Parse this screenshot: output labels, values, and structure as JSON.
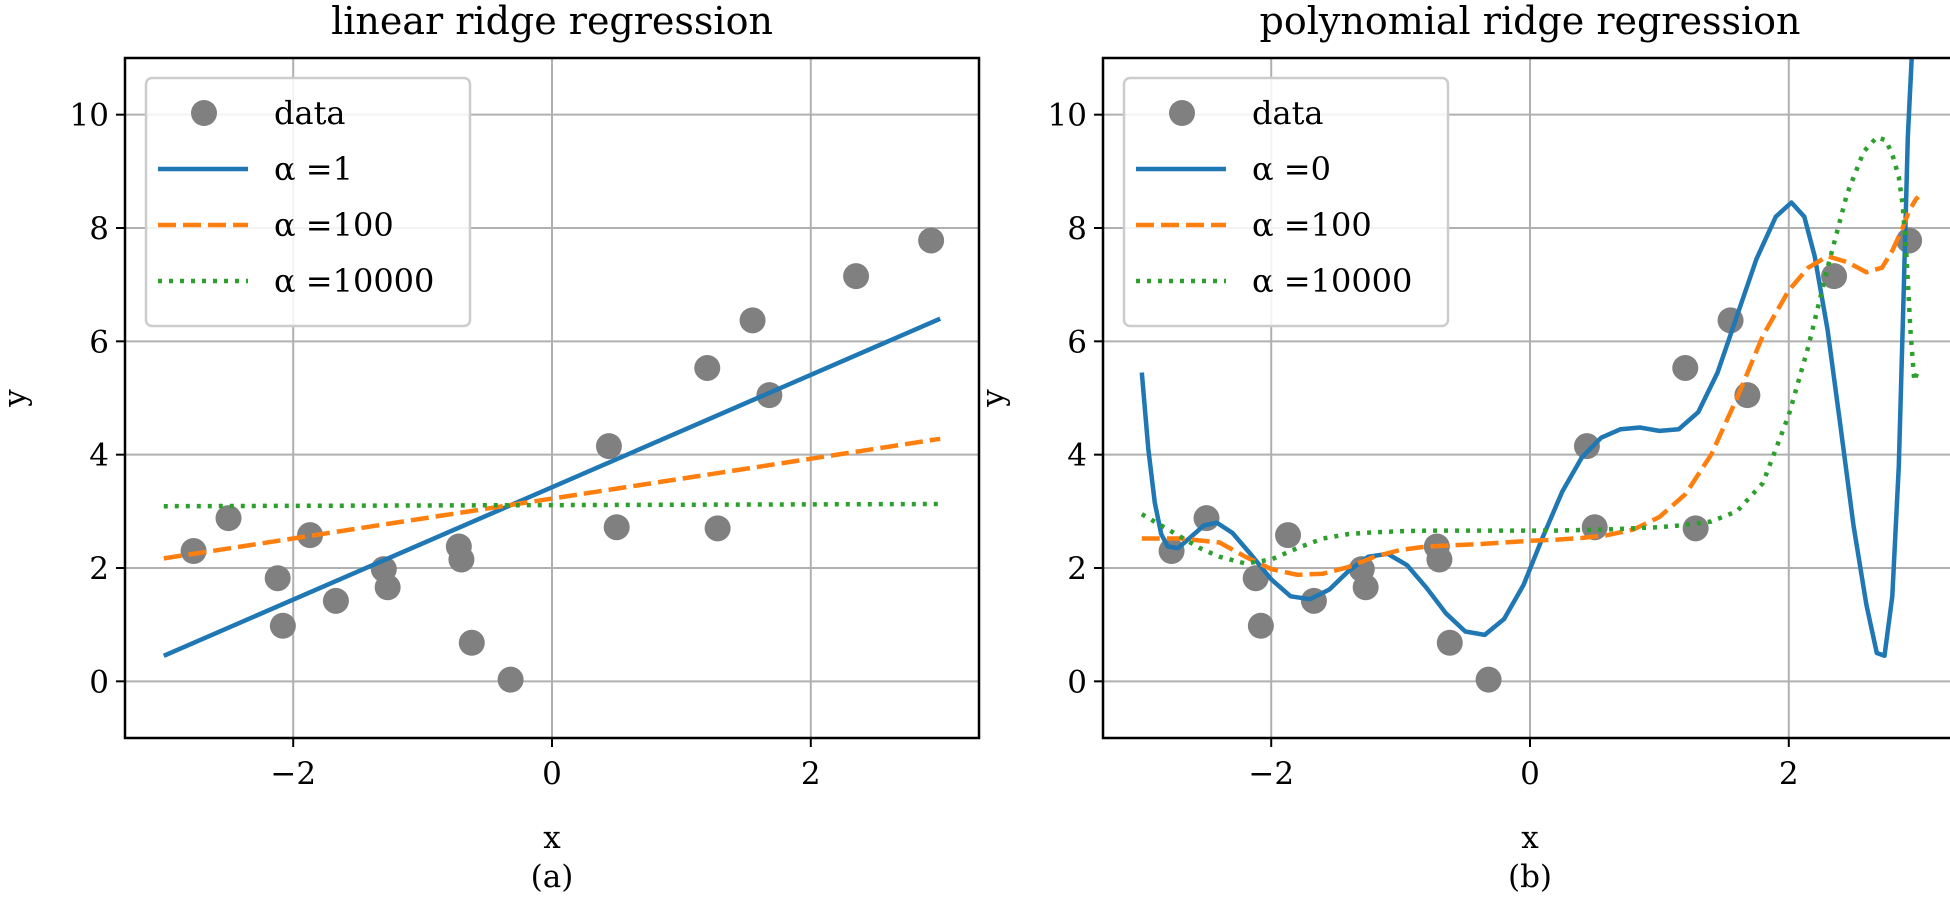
{
  "chart_data": [
    {
      "type": "line",
      "panel_label": "(a)",
      "title": "linear ridge regression",
      "xlabel": "x",
      "ylabel": "y",
      "xlim": [
        -3.3,
        3.3
      ],
      "ylim": [
        -1,
        11
      ],
      "xticks": [
        -2,
        0,
        2
      ],
      "yticks": [
        0,
        2,
        4,
        6,
        8,
        10
      ],
      "xtick_labels": [
        "−2",
        "0",
        "2"
      ],
      "ytick_labels": [
        "0",
        "2",
        "4",
        "6",
        "8",
        "10"
      ],
      "grid": true,
      "legend": {
        "loc": "upper-left",
        "entries": [
          "data",
          "α =1",
          "α =100",
          "α =10000"
        ]
      },
      "scatter": {
        "name": "data",
        "color": "#808080",
        "x": [
          -2.77,
          -2.5,
          -2.12,
          -2.08,
          -1.87,
          -1.67,
          -1.3,
          -1.27,
          -0.72,
          -0.7,
          -0.62,
          -0.32,
          0.44,
          0.5,
          1.2,
          1.28,
          1.55,
          1.68,
          2.35,
          2.93
        ],
        "y": [
          2.3,
          2.88,
          1.82,
          0.98,
          2.58,
          1.42,
          1.98,
          1.66,
          2.38,
          2.15,
          0.68,
          0.03,
          4.15,
          2.72,
          5.53,
          2.7,
          6.37,
          5.05,
          7.15,
          7.78
        ]
      },
      "series": [
        {
          "name": "α =1",
          "color": "#1f77b4",
          "style": "solid",
          "x": [
            -3,
            3
          ],
          "y": [
            0.45,
            6.4
          ]
        },
        {
          "name": "α =100",
          "color": "#ff7f0e",
          "style": "dashed",
          "x": [
            -3,
            3
          ],
          "y": [
            2.17,
            4.28
          ]
        },
        {
          "name": "α =10000",
          "color": "#2ca02c",
          "style": "dotted",
          "x": [
            -3,
            3
          ],
          "y": [
            3.09,
            3.13
          ]
        }
      ]
    },
    {
      "type": "line",
      "panel_label": "(b)",
      "title": "polynomial ridge regression",
      "xlabel": "x",
      "ylabel": "y",
      "xlim": [
        -3.3,
        3.3
      ],
      "ylim": [
        -1,
        11
      ],
      "xticks": [
        -2,
        0,
        2
      ],
      "yticks": [
        0,
        2,
        4,
        6,
        8,
        10
      ],
      "xtick_labels": [
        "−2",
        "0",
        "2"
      ],
      "ytick_labels": [
        "0",
        "2",
        "4",
        "6",
        "8",
        "10"
      ],
      "grid": true,
      "legend": {
        "loc": "upper-left",
        "entries": [
          "data",
          "α =0",
          "α =100",
          "α =10000"
        ]
      },
      "scatter": {
        "name": "data",
        "color": "#808080",
        "x": [
          -2.77,
          -2.5,
          -2.12,
          -2.08,
          -1.87,
          -1.67,
          -1.3,
          -1.27,
          -0.72,
          -0.7,
          -0.62,
          -0.32,
          0.44,
          0.5,
          1.2,
          1.28,
          1.55,
          1.68,
          2.35,
          2.93
        ],
        "y": [
          2.3,
          2.88,
          1.82,
          0.98,
          2.58,
          1.42,
          1.98,
          1.66,
          2.38,
          2.15,
          0.68,
          0.03,
          4.15,
          2.72,
          5.53,
          2.7,
          6.37,
          5.05,
          7.15,
          7.78
        ]
      },
      "series": [
        {
          "name": "α =0",
          "color": "#1f77b4",
          "style": "solid",
          "x": [
            -3.0,
            -2.95,
            -2.9,
            -2.85,
            -2.8,
            -2.72,
            -2.62,
            -2.52,
            -2.42,
            -2.3,
            -2.15,
            -2.0,
            -1.85,
            -1.7,
            -1.55,
            -1.4,
            -1.25,
            -1.1,
            -0.95,
            -0.8,
            -0.65,
            -0.5,
            -0.35,
            -0.2,
            -0.05,
            0.1,
            0.25,
            0.4,
            0.55,
            0.7,
            0.85,
            1.0,
            1.15,
            1.3,
            1.45,
            1.6,
            1.75,
            1.9,
            2.02,
            2.12,
            2.2,
            2.3,
            2.4,
            2.5,
            2.6,
            2.68,
            2.74,
            2.8,
            2.85,
            2.89,
            2.92,
            2.95
          ],
          "y": [
            5.45,
            4.1,
            3.15,
            2.6,
            2.38,
            2.35,
            2.55,
            2.75,
            2.8,
            2.62,
            2.22,
            1.8,
            1.5,
            1.45,
            1.62,
            1.95,
            2.2,
            2.25,
            2.05,
            1.65,
            1.2,
            0.88,
            0.82,
            1.1,
            1.7,
            2.55,
            3.35,
            3.95,
            4.3,
            4.45,
            4.48,
            4.42,
            4.45,
            4.75,
            5.45,
            6.45,
            7.45,
            8.2,
            8.45,
            8.2,
            7.5,
            6.2,
            4.5,
            2.75,
            1.35,
            0.5,
            0.45,
            1.5,
            3.8,
            7.0,
            9.6,
            11.0
          ]
        },
        {
          "name": "α =100",
          "color": "#ff7f0e",
          "style": "dashed",
          "x": [
            -3.0,
            -2.7,
            -2.4,
            -2.2,
            -2.0,
            -1.8,
            -1.6,
            -1.4,
            -1.2,
            -1.0,
            -0.8,
            -0.6,
            -0.4,
            -0.2,
            0.0,
            0.2,
            0.4,
            0.6,
            0.8,
            1.0,
            1.2,
            1.4,
            1.6,
            1.8,
            2.0,
            2.15,
            2.3,
            2.45,
            2.6,
            2.72,
            2.8,
            2.87,
            2.93,
            2.98,
            3.0
          ],
          "y": [
            2.52,
            2.52,
            2.45,
            2.2,
            1.98,
            1.88,
            1.9,
            2.02,
            2.2,
            2.32,
            2.38,
            2.4,
            2.42,
            2.45,
            2.48,
            2.5,
            2.53,
            2.58,
            2.68,
            2.9,
            3.3,
            4.0,
            5.0,
            6.1,
            6.9,
            7.3,
            7.5,
            7.4,
            7.22,
            7.3,
            7.6,
            7.95,
            8.3,
            8.5,
            8.55
          ]
        },
        {
          "name": "α =10000",
          "color": "#2ca02c",
          "style": "dotted",
          "x": [
            -3.0,
            -2.85,
            -2.7,
            -2.55,
            -2.4,
            -2.2,
            -2.0,
            -1.8,
            -1.6,
            -1.4,
            -1.2,
            -1.0,
            -0.8,
            -0.6,
            -0.4,
            -0.2,
            0.0,
            0.2,
            0.4,
            0.6,
            0.8,
            1.0,
            1.2,
            1.4,
            1.6,
            1.8,
            2.0,
            2.15,
            2.3,
            2.45,
            2.58,
            2.68,
            2.75,
            2.8,
            2.85,
            2.88,
            2.91,
            2.94,
            2.97,
            3.0
          ],
          "y": [
            2.95,
            2.75,
            2.55,
            2.35,
            2.2,
            2.08,
            2.15,
            2.35,
            2.52,
            2.6,
            2.63,
            2.65,
            2.66,
            2.66,
            2.66,
            2.66,
            2.66,
            2.66,
            2.67,
            2.68,
            2.7,
            2.72,
            2.76,
            2.82,
            3.0,
            3.5,
            4.7,
            5.9,
            7.3,
            8.6,
            9.35,
            9.6,
            9.55,
            9.3,
            8.9,
            8.4,
            7.5,
            6.2,
            5.3,
            5.5
          ]
        }
      ]
    }
  ]
}
